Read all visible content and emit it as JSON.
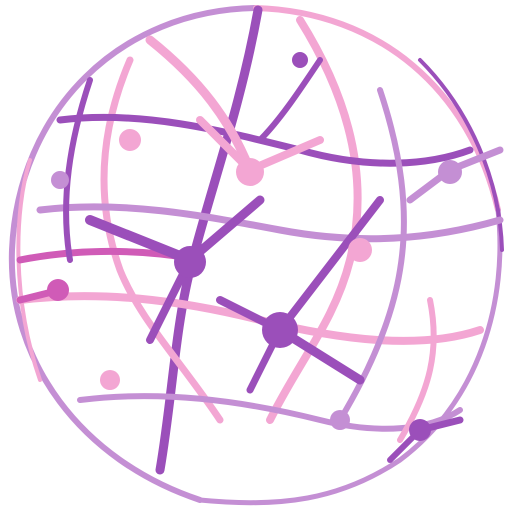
{
  "graphic": {
    "icon": "neural-network-sphere-icon",
    "colors": {
      "background": "#ffffff",
      "pink": "#f3a6d3",
      "lilac": "#c48fd4",
      "violet": "#9b4fba",
      "magenta": "#d05bb7"
    }
  }
}
